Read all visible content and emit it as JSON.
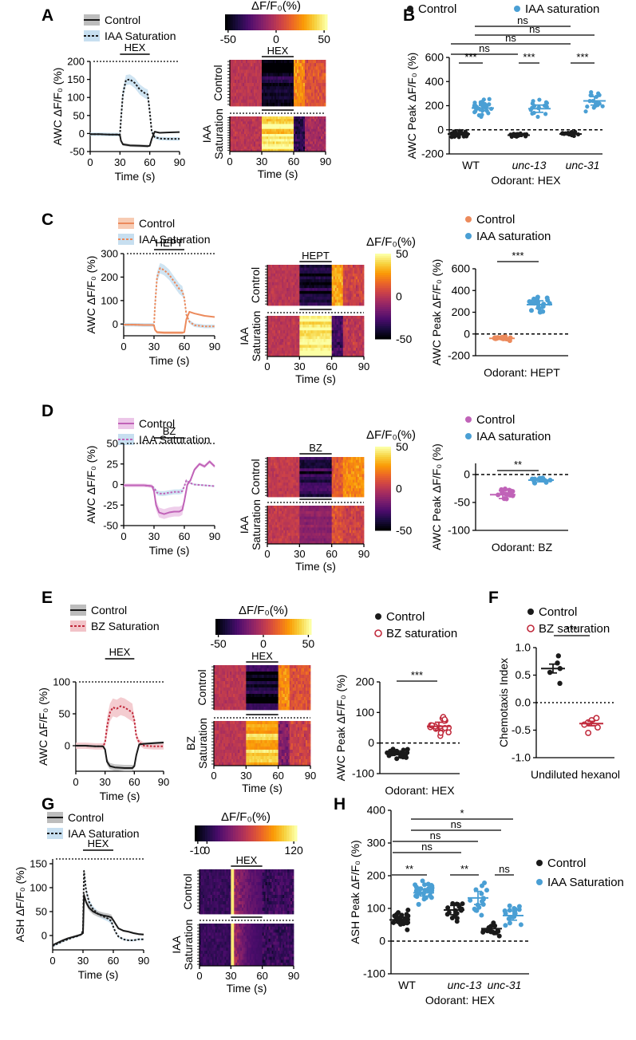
{
  "colors": {
    "control_black": "#1a1a1a",
    "iaa_blue": "#4a9fd4",
    "iaa_blue_shade": "#c7dff0",
    "hept_orange": "#ec8a5c",
    "hept_orange_shade": "#f7cbb3",
    "bz_purple": "#c063b8",
    "bz_purple_shade": "#ecc6e8",
    "bz_red": "#c0283a",
    "bz_red_shade": "#f2c3c8",
    "cmap": [
      "#000004",
      "#1b0c41",
      "#4a0c6b",
      "#781c6d",
      "#a52c60",
      "#cf4446",
      "#ed6925",
      "#fb9b06",
      "#f7d13d",
      "#fcffa4"
    ]
  },
  "panel_letters": [
    "A",
    "B",
    "C",
    "D",
    "E",
    "F",
    "G",
    "H"
  ],
  "chart_data": [
    {
      "id": "A_trace",
      "type": "line",
      "legend": [
        "Control",
        "IAA Saturation"
      ],
      "stim_label": "HEX",
      "stim_window": [
        30,
        60
      ],
      "ylabel": "AWC ΔF/F₀ (%)",
      "xlabel": "Time (s)",
      "xlim": [
        0,
        90
      ],
      "ylim": [
        -50,
        200
      ],
      "xticks": [
        "0",
        "30",
        "60",
        "90"
      ],
      "yticks": [
        "-50",
        "0",
        "50",
        "100",
        "150",
        "200"
      ],
      "series": [
        {
          "name": "Control",
          "x": [
            0,
            10,
            20,
            28,
            30,
            31,
            33,
            40,
            50,
            58,
            60,
            62,
            65,
            70,
            80,
            90
          ],
          "y": [
            -2,
            -2,
            -3,
            -3,
            -5,
            -20,
            -30,
            -33,
            -34,
            -35,
            -34,
            -15,
            5,
            2,
            3,
            4
          ]
        },
        {
          "name": "IAA Saturation",
          "x": [
            0,
            10,
            20,
            28,
            30,
            31,
            33,
            36,
            40,
            45,
            50,
            55,
            58,
            60,
            62,
            65,
            70,
            80,
            90
          ],
          "y": [
            -2,
            -2,
            -3,
            -3,
            -3,
            40,
            110,
            148,
            150,
            140,
            122,
            112,
            108,
            60,
            5,
            -10,
            -14,
            -15,
            -15
          ]
        }
      ]
    },
    {
      "id": "A_heat",
      "type": "heatmap",
      "colorbar_title": "ΔF/F₀(%)",
      "colorbar_ticks": [
        "-50",
        "0",
        "50"
      ],
      "stim_label": "HEX",
      "xlabel": "Time (s)",
      "xticks": [
        "0",
        "30",
        "60",
        "90"
      ],
      "row_groups": [
        "Control",
        "IAA Saturation"
      ]
    },
    {
      "id": "B_scatter",
      "type": "scatter",
      "legend": [
        "Control",
        "IAA saturation"
      ],
      "ylabel": "AWC Peak ΔF/F₀ (%)",
      "xlabel": "Odorant: HEX",
      "ylim": [
        -200,
        600
      ],
      "yticks": [
        "-200",
        "0",
        "200",
        "400",
        "600"
      ],
      "categories": [
        "WT",
        "unc-13",
        "unc-31"
      ],
      "series": [
        {
          "name": "Control",
          "mean": [
            -35,
            -45,
            -35
          ],
          "sem": [
            8,
            10,
            8
          ],
          "n": [
            30,
            16,
            16
          ],
          "spread": [
            35,
            30,
            28
          ]
        },
        {
          "name": "IAA saturation",
          "mean": [
            180,
            175,
            240
          ],
          "sem": [
            22,
            30,
            35
          ],
          "n": [
            30,
            16,
            16
          ],
          "spread": [
            110,
            100,
            120
          ]
        }
      ],
      "significance": [
        "***",
        "***",
        "***",
        "ns",
        "ns",
        "ns",
        "ns"
      ]
    },
    {
      "id": "C_trace",
      "type": "line",
      "legend": [
        "Control",
        "IAA Saturation"
      ],
      "stim_label": "HEPT",
      "stim_window": [
        30,
        60
      ],
      "ylabel": "AWC ΔF/F₀ (%)",
      "xlabel": "Time (s)",
      "xlim": [
        0,
        90
      ],
      "ylim": [
        -50,
        300
      ],
      "xticks": [
        "0",
        "30",
        "60",
        "90"
      ],
      "yticks": [
        "0",
        "100",
        "200",
        "300"
      ],
      "series": [
        {
          "name": "Control",
          "x": [
            0,
            10,
            20,
            28,
            30,
            31,
            33,
            40,
            50,
            58,
            60,
            62,
            65,
            70,
            80,
            90
          ],
          "y": [
            -3,
            -3,
            -4,
            -4,
            -6,
            -25,
            -35,
            -37,
            -37,
            -37,
            -35,
            20,
            52,
            45,
            35,
            30
          ]
        },
        {
          "name": "IAA Saturation",
          "x": [
            0,
            10,
            20,
            28,
            30,
            31,
            33,
            36,
            40,
            45,
            50,
            55,
            58,
            60,
            62,
            65,
            70,
            80,
            90
          ],
          "y": [
            -3,
            -3,
            -4,
            -4,
            -4,
            80,
            200,
            238,
            230,
            210,
            180,
            150,
            140,
            110,
            40,
            10,
            -5,
            -10,
            -10
          ]
        }
      ]
    },
    {
      "id": "C_heat",
      "type": "heatmap",
      "colorbar_title": "ΔF/F₀(%)",
      "colorbar_ticks": [
        "50",
        "0",
        "-50"
      ],
      "stim_label": "HEPT",
      "xlabel": "Time (s)",
      "xticks": [
        "0",
        "30",
        "60",
        "90"
      ],
      "row_groups": [
        "Control",
        "IAA Saturation"
      ]
    },
    {
      "id": "C_scatter",
      "type": "scatter",
      "legend": [
        "Control",
        "IAA saturation"
      ],
      "ylabel": "AWC Peak ΔF/F₀ (%)",
      "xlabel": "Odorant: HEPT",
      "ylim": [
        -200,
        600
      ],
      "yticks": [
        "-200",
        "0",
        "200",
        "400",
        "600"
      ],
      "categories": [
        "Control",
        "IAA saturation"
      ],
      "series": [
        {
          "name": "Control",
          "mean": [
            -40
          ],
          "sem": [
            10
          ],
          "n": [
            18
          ],
          "spread": [
            35
          ]
        },
        {
          "name": "IAA saturation",
          "mean": [
            270
          ],
          "sem": [
            35
          ],
          "n": [
            18
          ],
          "spread": [
            140
          ]
        }
      ],
      "significance": [
        "***"
      ]
    },
    {
      "id": "D_trace",
      "type": "line",
      "legend": [
        "Control",
        "IAA Saturation"
      ],
      "stim_label": "BZ",
      "stim_window": [
        30,
        60
      ],
      "ylabel": "AWC ΔF/F₀ (%)",
      "xlabel": "Time (s)",
      "xlim": [
        0,
        90
      ],
      "ylim": [
        -50,
        50
      ],
      "xticks": [
        "0",
        "30",
        "60",
        "90"
      ],
      "yticks": [
        "-50",
        "-25",
        "0",
        "25",
        "50"
      ],
      "series": [
        {
          "name": "Control",
          "x": [
            0,
            10,
            20,
            28,
            30,
            32,
            35,
            40,
            45,
            50,
            55,
            58,
            60,
            63,
            66,
            70,
            75,
            80,
            85,
            90
          ],
          "y": [
            -1,
            -1,
            -1,
            -2,
            -8,
            -25,
            -34,
            -36,
            -34,
            -33,
            -33,
            -31,
            -20,
            0,
            5,
            18,
            25,
            22,
            28,
            22
          ]
        },
        {
          "name": "IAA Saturation",
          "x": [
            0,
            10,
            20,
            28,
            30,
            33,
            36,
            40,
            45,
            50,
            55,
            58,
            60,
            62,
            65,
            70,
            80,
            90
          ],
          "y": [
            -1,
            -1,
            -1,
            -2,
            -4,
            -10,
            -11,
            -11,
            -10,
            -9,
            -9,
            -8,
            -2,
            5,
            2,
            0,
            -1,
            -2
          ]
        }
      ]
    },
    {
      "id": "D_heat",
      "type": "heatmap",
      "colorbar_title": "ΔF/F₀(%)",
      "colorbar_ticks": [
        "50",
        "0",
        "-50"
      ],
      "stim_label": "BZ",
      "xlabel": "Time (s)",
      "xticks": [
        "0",
        "30",
        "60",
        "90"
      ],
      "row_groups": [
        "Control",
        "IAA Saturation"
      ]
    },
    {
      "id": "D_scatter",
      "type": "scatter",
      "legend": [
        "Control",
        "IAA saturation"
      ],
      "ylabel": "AWC Peak ΔF/F₀ (%)",
      "xlabel": "Odorant: BZ",
      "ylim": [
        -100,
        20
      ],
      "yticks": [
        "-100",
        "-50",
        "0"
      ],
      "categories": [
        "Control",
        "IAA saturation"
      ],
      "series": [
        {
          "name": "Control",
          "mean": [
            -36
          ],
          "sem": [
            7
          ],
          "n": [
            16
          ],
          "spread": [
            22
          ]
        },
        {
          "name": "IAA saturation",
          "mean": [
            -10
          ],
          "sem": [
            3
          ],
          "n": [
            16
          ],
          "spread": [
            9
          ]
        }
      ],
      "significance": [
        "**"
      ]
    },
    {
      "id": "E_trace",
      "type": "line",
      "legend": [
        "Control",
        "BZ Saturation"
      ],
      "stim_label": "HEX",
      "stim_window": [
        30,
        60
      ],
      "ylabel": "AWC ΔF/F₀ (%)",
      "xlabel": "Time (s)",
      "xlim": [
        0,
        90
      ],
      "ylim": [
        -40,
        100
      ],
      "xticks": [
        "0",
        "30",
        "60",
        "90"
      ],
      "yticks": [
        "0",
        "50",
        "100"
      ],
      "series": [
        {
          "name": "Control",
          "x": [
            0,
            10,
            20,
            28,
            30,
            32,
            35,
            40,
            50,
            58,
            60,
            62,
            65,
            70,
            80,
            90
          ],
          "y": [
            0,
            0,
            -1,
            -1,
            -6,
            -25,
            -32,
            -34,
            -35,
            -35,
            -32,
            -15,
            2,
            3,
            4,
            5
          ]
        },
        {
          "name": "BZ Saturation",
          "x": [
            0,
            10,
            20,
            28,
            30,
            32,
            35,
            38,
            42,
            46,
            50,
            55,
            58,
            60,
            62,
            65,
            70,
            80,
            90
          ],
          "y": [
            0,
            0,
            -1,
            -1,
            5,
            30,
            52,
            60,
            58,
            62,
            60,
            55,
            52,
            40,
            15,
            5,
            0,
            -1,
            -1
          ]
        }
      ]
    },
    {
      "id": "E_heat",
      "type": "heatmap",
      "colorbar_title": "ΔF/F₀(%)",
      "colorbar_ticks": [
        "-50",
        "0",
        "50"
      ],
      "stim_label": "HEX",
      "xlabel": "Time (s)",
      "xticks": [
        "0",
        "30",
        "60",
        "90"
      ],
      "row_groups": [
        "Control",
        "BZ Saturation"
      ]
    },
    {
      "id": "E_scatter",
      "type": "scatter",
      "legend": [
        "Control",
        "BZ saturation"
      ],
      "ylabel": "AWC Peak ΔF/F₀ (%)",
      "xlabel": "Odorant: HEX",
      "ylim": [
        -100,
        200
      ],
      "yticks": [
        "-100",
        "0",
        "100",
        "200"
      ],
      "categories": [
        "Control",
        "BZ saturation"
      ],
      "series": [
        {
          "name": "Control",
          "mean": [
            -32
          ],
          "sem": [
            6
          ],
          "n": [
            24
          ],
          "spread": [
            25
          ]
        },
        {
          "name": "BZ saturation",
          "mean": [
            55
          ],
          "sem": [
            13
          ],
          "n": [
            18
          ],
          "spread": [
            55
          ]
        }
      ],
      "significance": [
        "***"
      ]
    },
    {
      "id": "F_scatter",
      "type": "scatter",
      "legend": [
        "Control",
        "BZ saturation"
      ],
      "ylabel": "Chemotaxis Index",
      "xlabel": "Undiluted hexanol",
      "ylim": [
        -1.0,
        1.0
      ],
      "yticks": [
        "-1.0",
        "-0.5",
        "0.0",
        "0.5",
        "1.0"
      ],
      "categories": [
        "Control",
        "BZ saturation"
      ],
      "series": [
        {
          "name": "Control",
          "mean": [
            0.62
          ],
          "sem": [
            0.08
          ],
          "n": [
            5
          ],
          "values": [
            0.85,
            0.72,
            0.62,
            0.55,
            0.35
          ]
        },
        {
          "name": "BZ saturation",
          "mean": [
            -0.38
          ],
          "sem": [
            0.04
          ],
          "n": [
            6
          ],
          "values": [
            -0.28,
            -0.32,
            -0.36,
            -0.4,
            -0.45,
            -0.55
          ]
        }
      ],
      "significance": [
        "***"
      ]
    },
    {
      "id": "G_trace",
      "type": "line",
      "legend": [
        "Control",
        "IAA Saturation"
      ],
      "stim_label": "HEX",
      "stim_window": [
        30,
        60
      ],
      "ylabel": "ASH ΔF/F₀ (%)",
      "xlabel": "Time (s)",
      "xlim": [
        0,
        90
      ],
      "ylim": [
        -30,
        160
      ],
      "xticks": [
        "0",
        "30",
        "60",
        "90"
      ],
      "yticks": [
        "0",
        "50",
        "100",
        "150"
      ],
      "series": [
        {
          "name": "Control",
          "x": [
            0,
            5,
            10,
            15,
            20,
            25,
            28,
            30,
            31,
            33,
            36,
            40,
            45,
            50,
            55,
            58,
            60,
            62,
            65,
            70,
            75,
            80,
            85,
            90
          ],
          "y": [
            -20,
            -15,
            -10,
            -6,
            -3,
            0,
            2,
            5,
            85,
            70,
            58,
            50,
            45,
            42,
            40,
            38,
            32,
            25,
            15,
            10,
            8,
            5,
            3,
            2
          ]
        },
        {
          "name": "IAA Saturation",
          "x": [
            0,
            5,
            10,
            15,
            20,
            25,
            28,
            30,
            31,
            33,
            36,
            40,
            45,
            50,
            55,
            58,
            60,
            62,
            65,
            70,
            75,
            80,
            85,
            90
          ],
          "y": [
            -22,
            -17,
            -12,
            -8,
            -4,
            -1,
            2,
            10,
            135,
            95,
            70,
            55,
            45,
            40,
            35,
            30,
            18,
            8,
            -2,
            -8,
            -10,
            -10,
            -8,
            -8
          ]
        }
      ]
    },
    {
      "id": "G_heat",
      "type": "heatmap",
      "colorbar_title": "ΔF/F₀(%)",
      "colorbar_ticks": [
        "-10",
        "0",
        "120"
      ],
      "stim_label": "HEX",
      "xlabel": "Time (s)",
      "xticks": [
        "0",
        "30",
        "60",
        "90"
      ],
      "row_groups": [
        "Control",
        "IAA Saturation"
      ]
    },
    {
      "id": "H_scatter",
      "type": "scatter",
      "legend": [
        "Control",
        "IAA Saturation"
      ],
      "ylabel": "ASH Peak ΔF/F₀ (%)",
      "xlabel": "Odorant: HEX",
      "ylim": [
        -100,
        400
      ],
      "yticks": [
        "-100",
        "0",
        "100",
        "200",
        "300",
        "400"
      ],
      "categories": [
        "WT",
        "unc-13",
        "unc-31"
      ],
      "series": [
        {
          "name": "Control",
          "mean": [
            65,
            95,
            38
          ],
          "sem": [
            8,
            14,
            8
          ],
          "n": [
            30,
            16,
            16
          ],
          "spread": [
            45,
            55,
            30
          ]
        },
        {
          "name": "IAA Saturation",
          "mean": [
            148,
            132,
            78
          ],
          "sem": [
            10,
            20,
            14
          ],
          "n": [
            30,
            16,
            16
          ],
          "spread": [
            55,
            75,
            55
          ]
        }
      ],
      "significance": [
        "**",
        "**",
        "ns",
        "ns",
        "ns",
        "ns",
        "*"
      ]
    }
  ]
}
